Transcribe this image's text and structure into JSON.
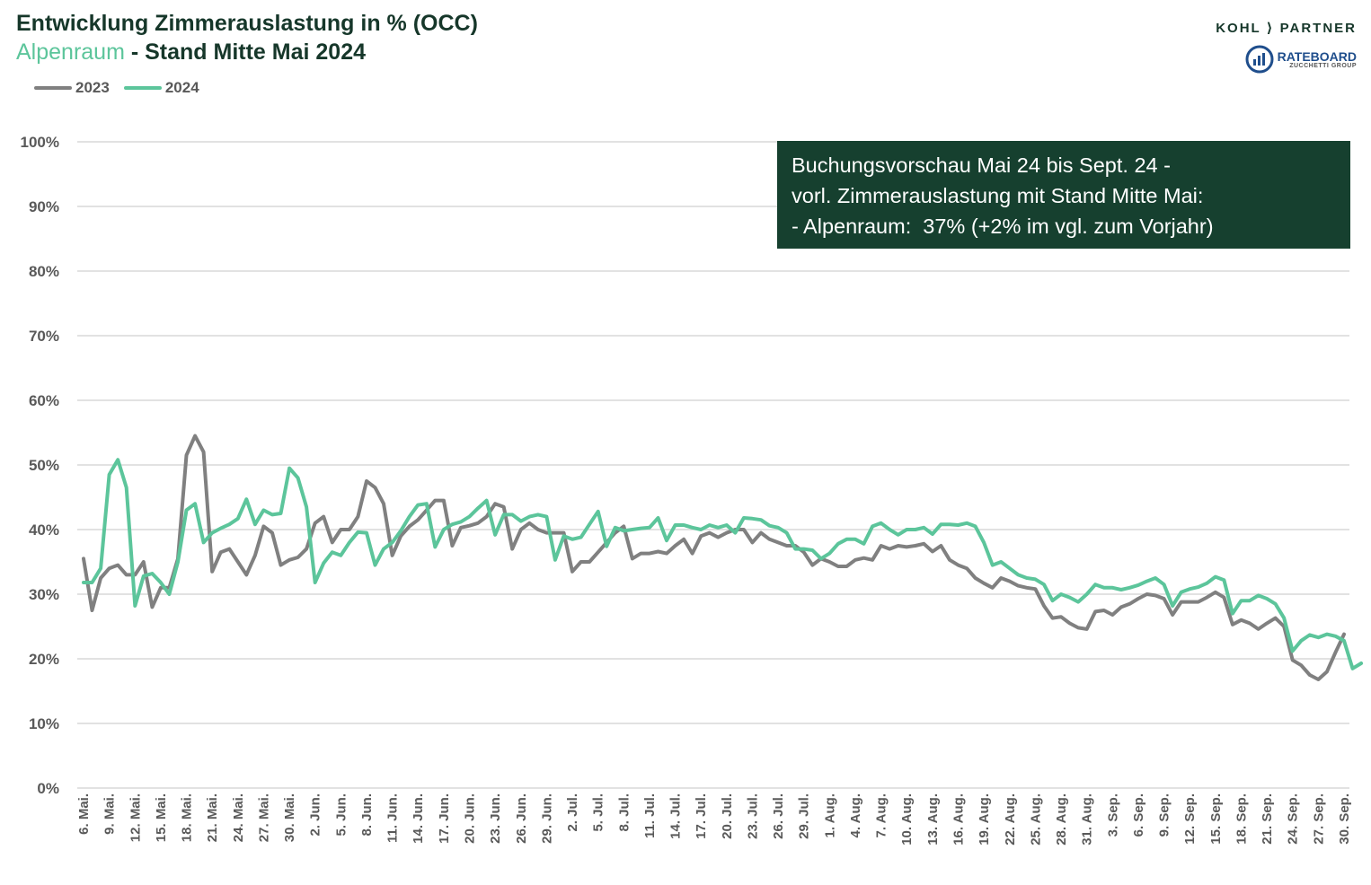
{
  "title": {
    "line1": "Entwicklung Zimmerauslastung in % (OCC)",
    "region": "Alpenraum",
    "line2_rest": " - Stand Mitte Mai 2024"
  },
  "brand": {
    "kohl_partner": "KOHL ⟩ PARTNER",
    "rateboard": "RATEBOARD",
    "rateboard_sub": "ZUCCHETTI GROUP"
  },
  "note": {
    "line1": "Buchungsvorschau Mai 24 bis Sept. 24 -",
    "line2": "vorl. Zimmerauslastung mit Stand Mitte Mai:",
    "line3": "- Alpenraum:  37% (+2% im vgl. zum Vorjahr)"
  },
  "chart_data": {
    "type": "line",
    "ylim": [
      0,
      100
    ],
    "yticks": [
      "0%",
      "10%",
      "20%",
      "30%",
      "40%",
      "50%",
      "60%",
      "70%",
      "80%",
      "90%",
      "100%"
    ],
    "xtick_labels": [
      "6. Mai.",
      "9. Mai.",
      "12. Mai.",
      "15. Mai.",
      "18. Mai.",
      "21. Mai.",
      "24. Mai.",
      "27. Mai.",
      "30. Mai.",
      "2. Jun.",
      "5. Jun.",
      "8. Jun.",
      "11. Jun.",
      "14. Jun.",
      "17. Jun.",
      "20. Jun.",
      "23. Jun.",
      "26. Jun.",
      "29. Jun.",
      "2. Jul.",
      "5. Jul.",
      "8. Jul.",
      "11. Jul.",
      "14. Jul.",
      "17. Jul.",
      "20. Jul.",
      "23. Jul.",
      "26. Jul.",
      "29. Jul.",
      "1. Aug.",
      "4. Aug.",
      "7. Aug.",
      "10. Aug.",
      "13. Aug.",
      "16. Aug.",
      "19. Aug.",
      "22. Aug.",
      "25. Aug.",
      "28. Aug.",
      "31. Aug.",
      "3. Sep.",
      "6. Sep.",
      "9. Sep.",
      "12. Sep.",
      "15. Sep.",
      "18. Sep.",
      "21. Sep.",
      "24. Sep.",
      "27. Sep.",
      "30. Sep."
    ],
    "xtick_step_days": 3,
    "series": [
      {
        "name": "2023",
        "color": "#808080",
        "values": [
          35.5,
          27.5,
          32.5,
          34,
          34.5,
          33,
          33,
          35,
          28,
          31,
          31,
          35.5,
          51.5,
          54.5,
          52,
          33.5,
          36.5,
          37,
          35,
          33,
          36,
          40.5,
          39.5,
          34.5,
          35.3,
          35.7,
          37,
          41,
          42,
          38,
          40,
          40,
          42,
          47.5,
          46.5,
          44,
          36,
          39,
          40.5,
          41.5,
          43,
          44.5,
          44.5,
          37.5,
          40.3,
          40.6,
          41,
          42,
          44,
          43.5,
          37,
          40,
          41,
          40,
          39.5,
          39.5,
          39.5,
          33.5,
          35,
          35,
          36.5,
          38,
          39.5,
          40.5,
          35.5,
          36.3,
          36.3,
          36.6,
          36.3,
          37.5,
          38.5,
          36.3,
          39,
          39.5,
          38.8,
          39.5,
          40,
          40,
          38,
          39.5,
          38.5,
          38,
          37.5,
          37.5,
          36.5,
          34.5,
          35.5,
          35,
          34.3,
          34.3,
          35.3,
          35.6,
          35.3,
          37.5,
          37,
          37.5,
          37.3,
          37.5,
          37.8,
          36.6,
          37.5,
          35.3,
          34.5,
          34,
          32.5,
          31.7,
          31,
          32.5,
          32,
          31.3,
          31,
          30.8,
          28.2,
          26.3,
          26.5,
          25.5,
          24.8,
          24.6,
          27.3,
          27.5,
          26.8,
          28,
          28.5,
          29.3,
          30,
          29.8,
          29.3,
          26.8,
          28.8,
          28.8,
          28.8,
          29.5,
          30.3,
          29.5,
          25.3,
          26,
          25.5,
          24.6,
          25.5,
          26.3,
          25,
          19.8,
          19,
          17.5,
          16.8,
          18,
          21,
          23.8
        ]
      },
      {
        "name": "2024",
        "color": "#5cc59b",
        "values": [
          31.8,
          31.8,
          34,
          48.5,
          50.8,
          46.5,
          28.2,
          32.8,
          33.2,
          31.8,
          30,
          35,
          43,
          44,
          38,
          39.5,
          40.2,
          40.8,
          41.7,
          44.7,
          40.8,
          43,
          42.3,
          42.5,
          49.5,
          48,
          43.5,
          31.8,
          34.8,
          36.5,
          36,
          38,
          39.6,
          39.5,
          34.5,
          37,
          38,
          39.8,
          42,
          43.8,
          44,
          37.3,
          40,
          40.8,
          41.2,
          42,
          43.3,
          44.5,
          39.2,
          42.3,
          42.3,
          41.3,
          42,
          42.3,
          42,
          35.3,
          39,
          38.5,
          38.8,
          40.8,
          42.8,
          37.4,
          40.3,
          39.8,
          40,
          40.2,
          40.3,
          41.8,
          38.3,
          40.7,
          40.7,
          40.3,
          40,
          40.7,
          40.3,
          40.7,
          39.5,
          41.8,
          41.7,
          41.5,
          40.6,
          40.3,
          39.5,
          37,
          37,
          36.8,
          35.5,
          36.3,
          37.8,
          38.5,
          38.5,
          37.8,
          40.5,
          41,
          40,
          39.2,
          40,
          40,
          40.3,
          39.3,
          40.8,
          40.8,
          40.7,
          41,
          40.5,
          38,
          34.5,
          35,
          34,
          33,
          32.5,
          32.3,
          31.5,
          29,
          30,
          29.5,
          28.8,
          30,
          31.5,
          31,
          31,
          30.7,
          31,
          31.4,
          32,
          32.5,
          31.5,
          28.2,
          30.3,
          30.8,
          31.1,
          31.7,
          32.7,
          32.2,
          27,
          29,
          29,
          29.8,
          29.3,
          28.5,
          26.3,
          21.2,
          22.8,
          23.7,
          23.3,
          23.8,
          23.5,
          22.8,
          18.5,
          19.3
        ]
      }
    ]
  }
}
